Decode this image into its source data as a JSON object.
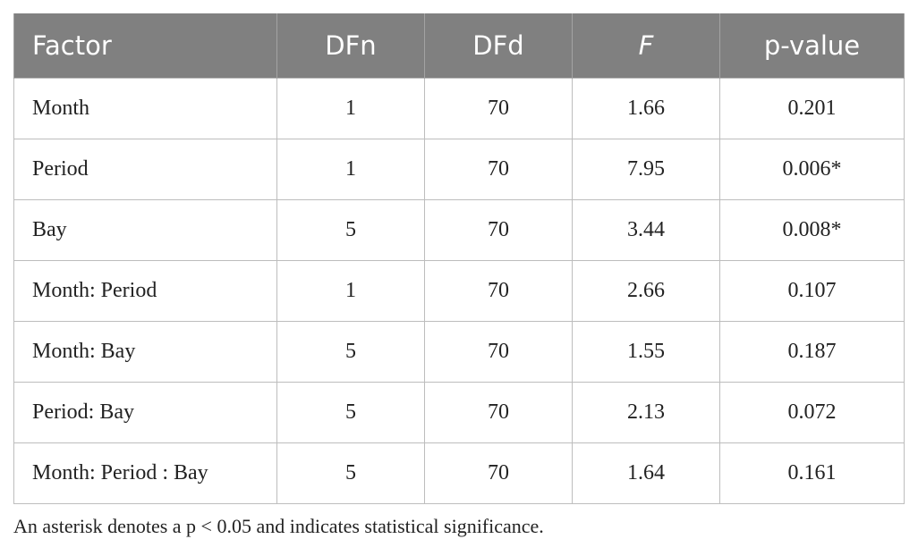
{
  "table": {
    "headers": [
      "Factor",
      "DFn",
      "DFd",
      "F",
      "p-value"
    ],
    "rows": [
      [
        "Month",
        "1",
        "70",
        "1.66",
        "0.201"
      ],
      [
        "Period",
        "1",
        "70",
        "7.95",
        "0.006*"
      ],
      [
        "Bay",
        "5",
        "70",
        "3.44",
        "0.008*"
      ],
      [
        "Month: Period",
        "1",
        "70",
        "2.66",
        "0.107"
      ],
      [
        "Month: Bay",
        "5",
        "70",
        "1.55",
        "0.187"
      ],
      [
        "Period: Bay",
        "5",
        "70",
        "2.13",
        "0.072"
      ],
      [
        "Month: Period : Bay",
        "5",
        "70",
        "1.64",
        "0.161"
      ]
    ]
  },
  "footnote": "An asterisk denotes a p < 0.05 and indicates statistical significance."
}
